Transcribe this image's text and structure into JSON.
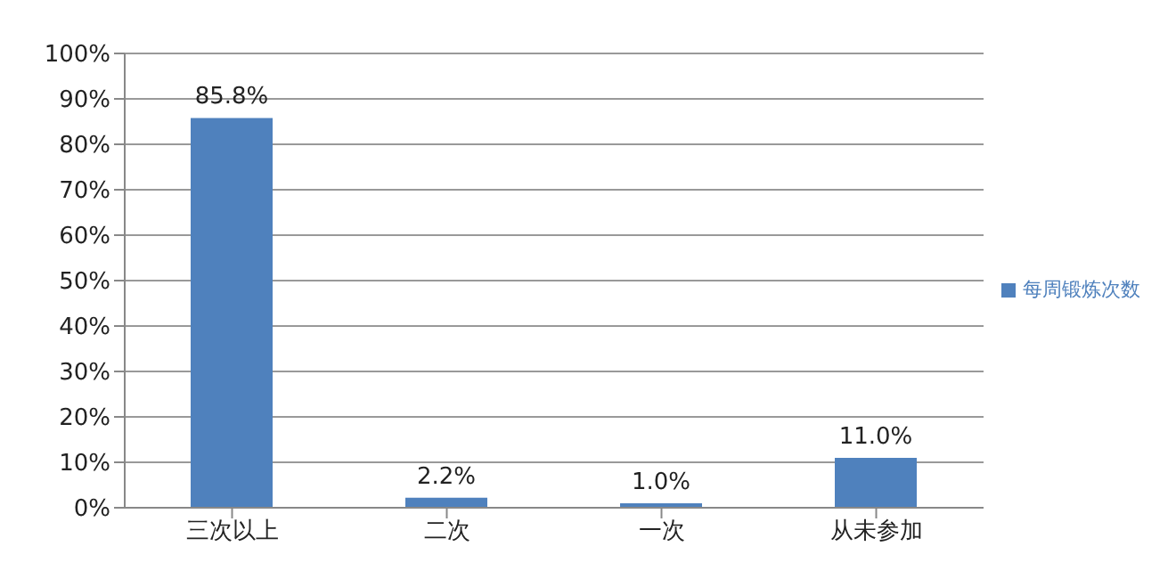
{
  "chart_data": {
    "type": "bar",
    "categories": [
      "三次以上",
      "二次",
      "一次",
      "从未参加"
    ],
    "series": [
      {
        "name": "每周锻炼次数",
        "color": "#4f81bd",
        "values": [
          85.8,
          2.2,
          1.0,
          11.0
        ],
        "value_labels": [
          "85.8%",
          "2.2%",
          "1.0%",
          "11.0%"
        ]
      }
    ],
    "ylim": [
      0,
      100
    ],
    "yticks": [
      {
        "value": 0,
        "label": "0%"
      },
      {
        "value": 10,
        "label": "10%"
      },
      {
        "value": 20,
        "label": "20%"
      },
      {
        "value": 30,
        "label": "30%"
      },
      {
        "value": 40,
        "label": "40%"
      },
      {
        "value": 50,
        "label": "50%"
      },
      {
        "value": 60,
        "label": "60%"
      },
      {
        "value": 70,
        "label": "70%"
      },
      {
        "value": 80,
        "label": "80%"
      },
      {
        "value": 90,
        "label": "90%"
      },
      {
        "value": 100,
        "label": "100%"
      }
    ],
    "grid": "y",
    "legend": "right"
  }
}
